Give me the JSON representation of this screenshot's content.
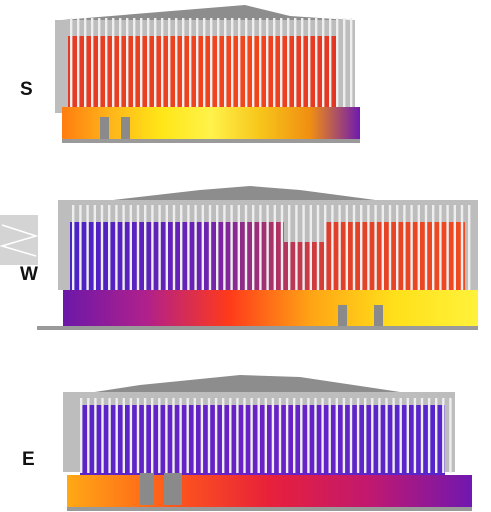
{
  "panels": [
    {
      "label": "S",
      "facade_gradient": [
        "#e53a24",
        "#ea4120",
        "#f2461c",
        "#e23625"
      ],
      "base_gradient": [
        "#ff7d10",
        "#ffb61a",
        "#ffe617",
        "#fff24a",
        "#f7c51a",
        "#f08e12",
        "#6f1ab0"
      ]
    },
    {
      "label": "W",
      "facade_gradient": [
        "#4b21c8",
        "#6a22b4",
        "#e0402a",
        "#f04a20"
      ],
      "base_gradient": [
        "#6b18a8",
        "#b0208c",
        "#ff3a1a",
        "#ffa515",
        "#ffe01a",
        "#fff23a"
      ]
    },
    {
      "label": "E",
      "facade_gradient": [
        "#5a24c8",
        "#6a22c6",
        "#5526cc"
      ],
      "base_gradient": [
        "#ffa915",
        "#ff5a1a",
        "#e8203a",
        "#c01870",
        "#7018b0"
      ]
    }
  ],
  "colors": {
    "roof": "#8d8d8d",
    "frame": "#bdbdbd",
    "fin": "#eeeeee",
    "ground": "#9a9a9a",
    "door": "#8a8a8a"
  }
}
